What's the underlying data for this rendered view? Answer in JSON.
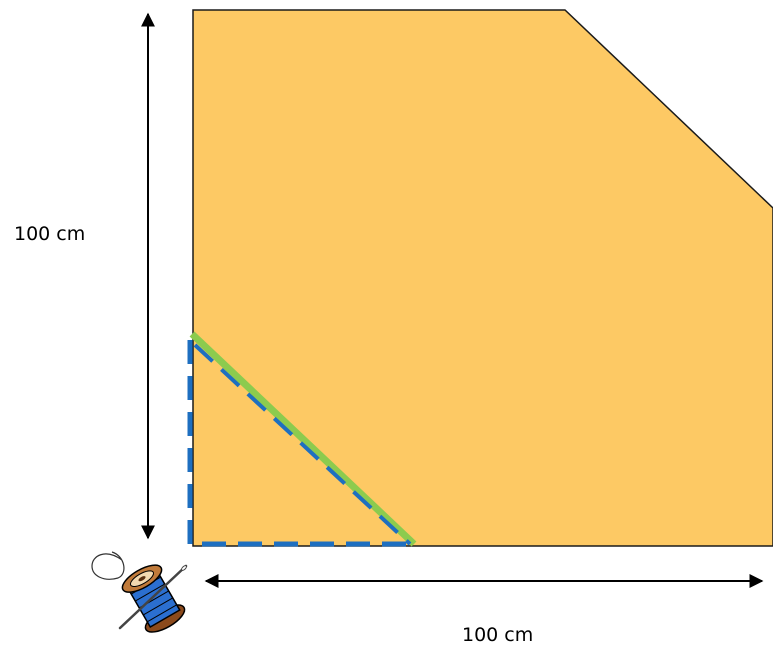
{
  "dimensions": {
    "vertical_label": "100 cm",
    "horizontal_label": "100 cm"
  },
  "colors": {
    "fabric_fill": "#FDC964",
    "outline": "#1a1a1a",
    "seam_dashed": "#1E6FC0",
    "cut_line": "#8CCB4E",
    "arrow": "#000000"
  },
  "icons": {
    "spool": "thread-spool-with-needle-icon"
  }
}
